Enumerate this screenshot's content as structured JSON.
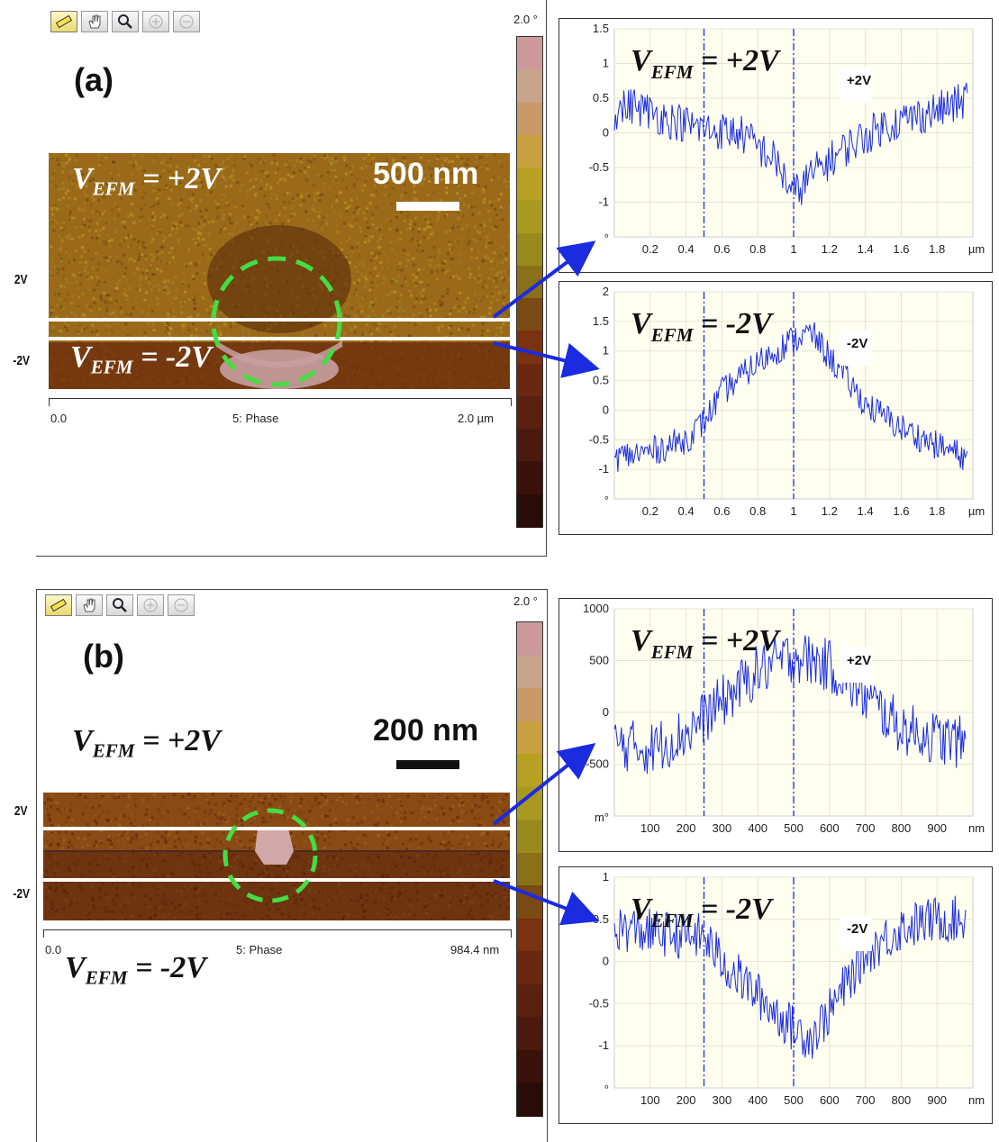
{
  "panels": [
    {
      "label": "(a)",
      "image": {
        "vefm_top": {
          "v": "V",
          "sub": "EFM",
          "rest": " = +2V"
        },
        "vefm_bottom": {
          "v": "V",
          "sub": "EFM",
          "rest": " = -2V"
        },
        "scale_bar": "500 nm",
        "axis_start": "0.0",
        "axis_mid": "5: Phase",
        "axis_end": "2.0 µm",
        "bias_top": "2V",
        "bias_bottom": "-2V",
        "colorbar_max": "2.0 °",
        "colors": {
          "base": "#9a6a1a",
          "dark": "#5a2a0a",
          "bright": "#c8a0a0",
          "circle": "#44dd44"
        }
      },
      "chart_data": [
        {
          "type": "line",
          "title_overlay": {
            "v": "V",
            "sub": "EFM",
            "rest": " = +2V"
          },
          "legend": "+2V",
          "x_ticks": [
            "0.2",
            "0.4",
            "0.6",
            "0.8",
            "1",
            "1.2",
            "1.4",
            "1.6",
            "1.8"
          ],
          "x_unit": "µm",
          "y_ticks": [
            "1.5",
            "1",
            "0.5",
            "0",
            "-0.5",
            "-1"
          ],
          "y_unit": "°",
          "xlim": [
            0,
            2
          ],
          "ylim": [
            -1.5,
            1.5
          ],
          "vlines": [
            0.5,
            1.0
          ],
          "trend_x": [
            0.0,
            0.1,
            0.3,
            0.5,
            0.7,
            0.9,
            1.0,
            1.1,
            1.3,
            1.5,
            1.7,
            1.9,
            1.97
          ],
          "trend_y": [
            0.3,
            0.4,
            0.2,
            0.05,
            0.0,
            -0.4,
            -0.9,
            -0.6,
            -0.2,
            0.1,
            0.25,
            0.4,
            0.5
          ],
          "noise": 0.28
        },
        {
          "type": "line",
          "title_overlay": {
            "v": "V",
            "sub": "EFM",
            "rest": " = -2V"
          },
          "legend": "-2V",
          "x_ticks": [
            "0.2",
            "0.4",
            "0.6",
            "0.8",
            "1",
            "1.2",
            "1.4",
            "1.6",
            "1.8"
          ],
          "x_unit": "µm",
          "y_ticks": [
            "2",
            "1.5",
            "1",
            "0.5",
            "0",
            "-0.5",
            "-1"
          ],
          "y_unit": "°",
          "xlim": [
            0,
            2
          ],
          "ylim": [
            -1.5,
            2
          ],
          "vlines": [
            0.5,
            1.0
          ],
          "trend_x": [
            0.0,
            0.2,
            0.4,
            0.5,
            0.6,
            0.8,
            1.0,
            1.1,
            1.2,
            1.4,
            1.6,
            1.8,
            1.97
          ],
          "trend_y": [
            -0.8,
            -0.7,
            -0.5,
            -0.2,
            0.3,
            0.8,
            1.2,
            1.3,
            0.9,
            0.1,
            -0.3,
            -0.6,
            -0.8
          ],
          "noise": 0.25
        }
      ]
    },
    {
      "label": "(b)",
      "image": {
        "vefm_top": {
          "v": "V",
          "sub": "EFM",
          "rest": " = +2V"
        },
        "vefm_bottom": {
          "v": "V",
          "sub": "EFM",
          "rest": " = -2V"
        },
        "scale_bar": "200 nm",
        "axis_start": "0.0",
        "axis_mid": "5: Phase",
        "axis_end": "984.4 nm",
        "bias_top": "2V",
        "bias_bottom": "-2V",
        "colorbar_max": "2.0 °",
        "colors": {
          "base": "#8a4a14",
          "dark": "#4a1a08",
          "bright": "#d0a8a8",
          "circle": "#44dd44"
        }
      },
      "chart_data": [
        {
          "type": "line",
          "title_overlay": {
            "v": "V",
            "sub": "EFM",
            "rest": " = +2V"
          },
          "legend": "+2V",
          "x_ticks": [
            "100",
            "200",
            "300",
            "400",
            "500",
            "600",
            "700",
            "800",
            "900"
          ],
          "x_unit": "nm",
          "y_ticks": [
            "1000",
            "500",
            "0",
            "-500"
          ],
          "y_unit": "m°",
          "xlim": [
            0,
            1000
          ],
          "ylim": [
            -1000,
            1000
          ],
          "vlines": [
            250,
            500
          ],
          "trend_x": [
            0,
            100,
            200,
            300,
            400,
            500,
            600,
            700,
            800,
            900,
            980
          ],
          "trend_y": [
            -300,
            -350,
            -200,
            100,
            400,
            550,
            450,
            150,
            -150,
            -250,
            -300
          ],
          "noise": 260
        },
        {
          "type": "line",
          "title_overlay": {
            "v": "V",
            "sub": "EFM",
            "rest": " = -2V"
          },
          "legend": "-2V",
          "x_ticks": [
            "100",
            "200",
            "300",
            "400",
            "500",
            "600",
            "700",
            "800",
            "900"
          ],
          "x_unit": "nm",
          "y_ticks": [
            "1",
            "0.5",
            "0",
            "-0.5",
            "-1"
          ],
          "y_unit": "°",
          "xlim": [
            0,
            1000
          ],
          "ylim": [
            -1.5,
            1
          ],
          "vlines": [
            250,
            500
          ],
          "trend_x": [
            0,
            100,
            200,
            250,
            300,
            400,
            500,
            550,
            600,
            700,
            800,
            900,
            980
          ],
          "trend_y": [
            0.4,
            0.35,
            0.3,
            0.3,
            0.0,
            -0.4,
            -0.8,
            -0.9,
            -0.6,
            0.1,
            0.4,
            0.5,
            0.5
          ],
          "noise": 0.28
        }
      ]
    }
  ]
}
